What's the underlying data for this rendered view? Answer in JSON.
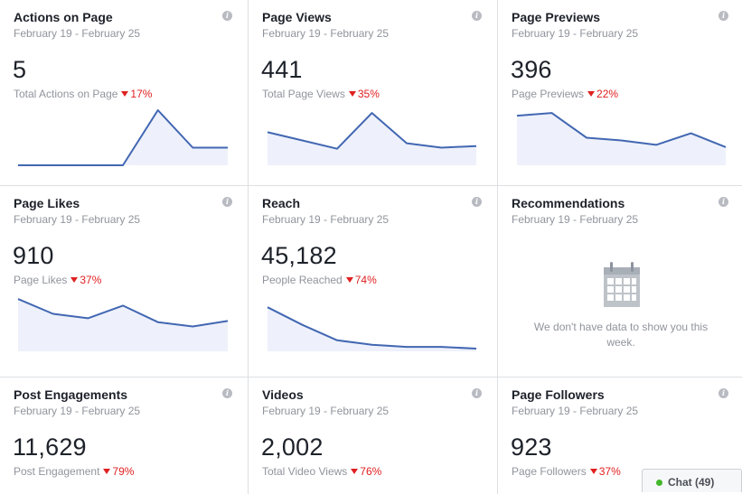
{
  "cards": [
    {
      "title": "Actions on Page",
      "range": "February 19 - February 25",
      "value": "5",
      "label": "Total Actions on Page",
      "change": "17%",
      "trend": [
        0,
        0,
        0,
        0,
        1,
        0.32,
        0.32
      ]
    },
    {
      "title": "Page Views",
      "range": "February 19 - February 25",
      "value": "441",
      "label": "Total Page Views",
      "change": "35%",
      "trend": [
        0.6,
        0.45,
        0.3,
        0.95,
        0.4,
        0.32,
        0.35
      ]
    },
    {
      "title": "Page Previews",
      "range": "February 19 - February 25",
      "value": "396",
      "label": "Page Previews",
      "change": "22%",
      "trend": [
        0.9,
        0.95,
        0.5,
        0.45,
        0.37,
        0.58,
        0.33
      ]
    },
    {
      "title": "Page Likes",
      "range": "February 19 - February 25",
      "value": "910",
      "label": "Page Likes",
      "change": "37%",
      "trend": [
        0.95,
        0.68,
        0.6,
        0.83,
        0.53,
        0.45,
        0.55
      ]
    },
    {
      "title": "Reach",
      "range": "February 19 - February 25",
      "value": "45,182",
      "label": "People Reached",
      "change": "74%",
      "trend": [
        0.8,
        0.48,
        0.2,
        0.12,
        0.08,
        0.08,
        0.05
      ]
    },
    {
      "title": "Recommendations",
      "range": "February 19 - February 25",
      "empty": "We don't have data to show you this week."
    },
    {
      "title": "Post Engagements",
      "range": "February 19 - February 25",
      "value": "11,629",
      "label": "Post Engagement",
      "change": "79%"
    },
    {
      "title": "Videos",
      "range": "February 19 - February 25",
      "value": "2,002",
      "label": "Total Video Views",
      "change": "76%"
    },
    {
      "title": "Page Followers",
      "range": "February 19 - February 25",
      "value": "923",
      "label": "Page Followers",
      "change": "37%"
    }
  ],
  "info_icon_glyph": "i",
  "chat": {
    "label": "Chat (49)",
    "status_color": "#42b72a"
  },
  "colors": {
    "line": "#4267b2",
    "fill": "#eef1fb",
    "decline": "#e02020"
  }
}
